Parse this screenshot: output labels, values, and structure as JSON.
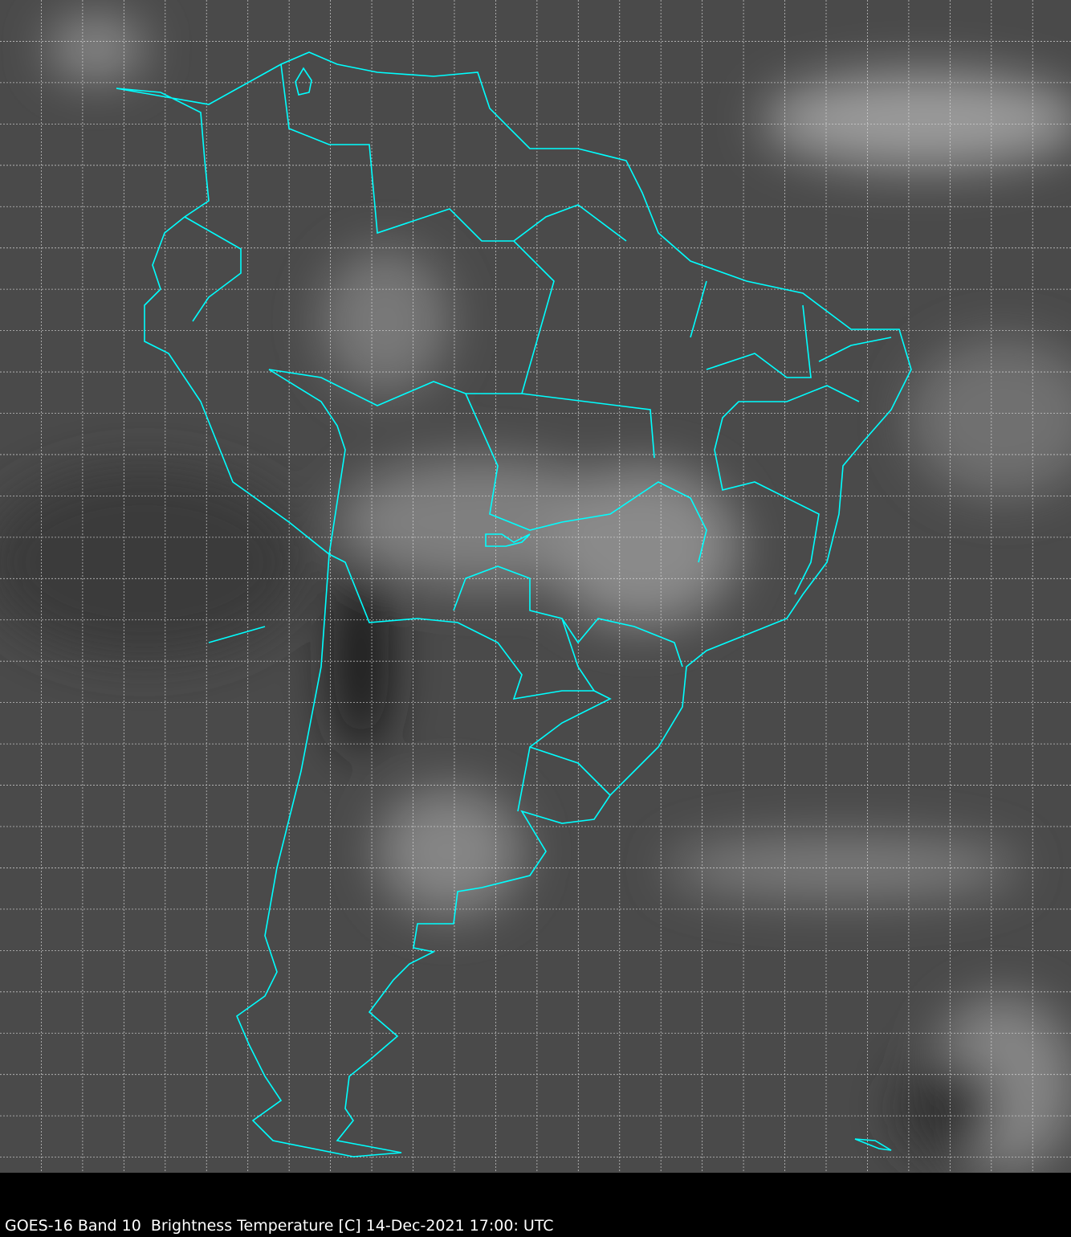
{
  "caption": "GOES-16 Band 10  Brightness Temperature [C] 14-Dec-2021 17:00: UTC",
  "satellite": "GOES-16",
  "band": "Band 10",
  "quantity": "Brightness Temperature [C]",
  "datetime": "14-Dec-2021 17:00: UTC",
  "colors": {
    "background": "#4a4a4a",
    "boundaries": "#00ffff",
    "grid": "#ffffff",
    "caption_bar": "#000000"
  },
  "grid": {
    "style": "dotted",
    "visible": true
  }
}
